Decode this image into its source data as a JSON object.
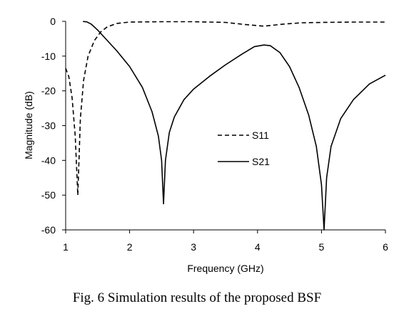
{
  "caption": "Fig. 6 Simulation results of the proposed BSF",
  "chart_data": {
    "type": "line",
    "title": "",
    "xlabel": "Frequency (GHz)",
    "ylabel": "Magnitude (dB)",
    "xlim": [
      1,
      6
    ],
    "ylim": [
      -60,
      0
    ],
    "xticks": [
      1,
      2,
      3,
      4,
      5,
      6
    ],
    "yticks": [
      0,
      -10,
      -20,
      -30,
      -40,
      -50,
      -60
    ],
    "x_tick_labels": [
      "1",
      "2",
      "3",
      "4",
      "5",
      "6"
    ],
    "y_tick_labels": [
      "0",
      "-10",
      "-20",
      "-30",
      "-40",
      "-50",
      "-60"
    ],
    "grid": false,
    "legend_position": "center-right",
    "series": [
      {
        "name": "S11",
        "line_style": "dashed",
        "color": "#000000",
        "points": [
          [
            1.0,
            -13.5
          ],
          [
            1.05,
            -16
          ],
          [
            1.1,
            -22
          ],
          [
            1.15,
            -33
          ],
          [
            1.19,
            -50
          ],
          [
            1.23,
            -28
          ],
          [
            1.28,
            -17
          ],
          [
            1.35,
            -10
          ],
          [
            1.45,
            -5.5
          ],
          [
            1.55,
            -3
          ],
          [
            1.65,
            -1.6
          ],
          [
            1.8,
            -0.6
          ],
          [
            2.0,
            -0.2
          ],
          [
            2.5,
            -0.1
          ],
          [
            3.0,
            -0.1
          ],
          [
            3.5,
            -0.3
          ],
          [
            3.8,
            -0.9
          ],
          [
            4.1,
            -1.4
          ],
          [
            4.4,
            -0.8
          ],
          [
            4.7,
            -0.4
          ],
          [
            5.0,
            -0.3
          ],
          [
            5.5,
            -0.2
          ],
          [
            6.0,
            -0.2
          ]
        ]
      },
      {
        "name": "S21",
        "line_style": "solid",
        "color": "#000000",
        "points": [
          [
            1.27,
            -0.05
          ],
          [
            1.33,
            -0.15
          ],
          [
            1.4,
            -0.8
          ],
          [
            1.5,
            -2.5
          ],
          [
            1.6,
            -4.5
          ],
          [
            1.8,
            -8.5
          ],
          [
            2.0,
            -13
          ],
          [
            2.2,
            -19
          ],
          [
            2.35,
            -26
          ],
          [
            2.45,
            -33
          ],
          [
            2.5,
            -40
          ],
          [
            2.53,
            -52.5
          ],
          [
            2.56,
            -40
          ],
          [
            2.62,
            -32
          ],
          [
            2.7,
            -27.5
          ],
          [
            2.85,
            -22.5
          ],
          [
            3.0,
            -19.5
          ],
          [
            3.25,
            -15.8
          ],
          [
            3.5,
            -12.5
          ],
          [
            3.75,
            -9.5
          ],
          [
            3.95,
            -7.3
          ],
          [
            4.1,
            -6.8
          ],
          [
            4.2,
            -7
          ],
          [
            4.35,
            -9
          ],
          [
            4.5,
            -13
          ],
          [
            4.65,
            -19
          ],
          [
            4.8,
            -27
          ],
          [
            4.92,
            -36
          ],
          [
            5.0,
            -47
          ],
          [
            5.04,
            -60
          ],
          [
            5.08,
            -45
          ],
          [
            5.15,
            -36
          ],
          [
            5.3,
            -28
          ],
          [
            5.5,
            -22.5
          ],
          [
            5.75,
            -18
          ],
          [
            6.0,
            -15.5
          ]
        ]
      }
    ]
  }
}
